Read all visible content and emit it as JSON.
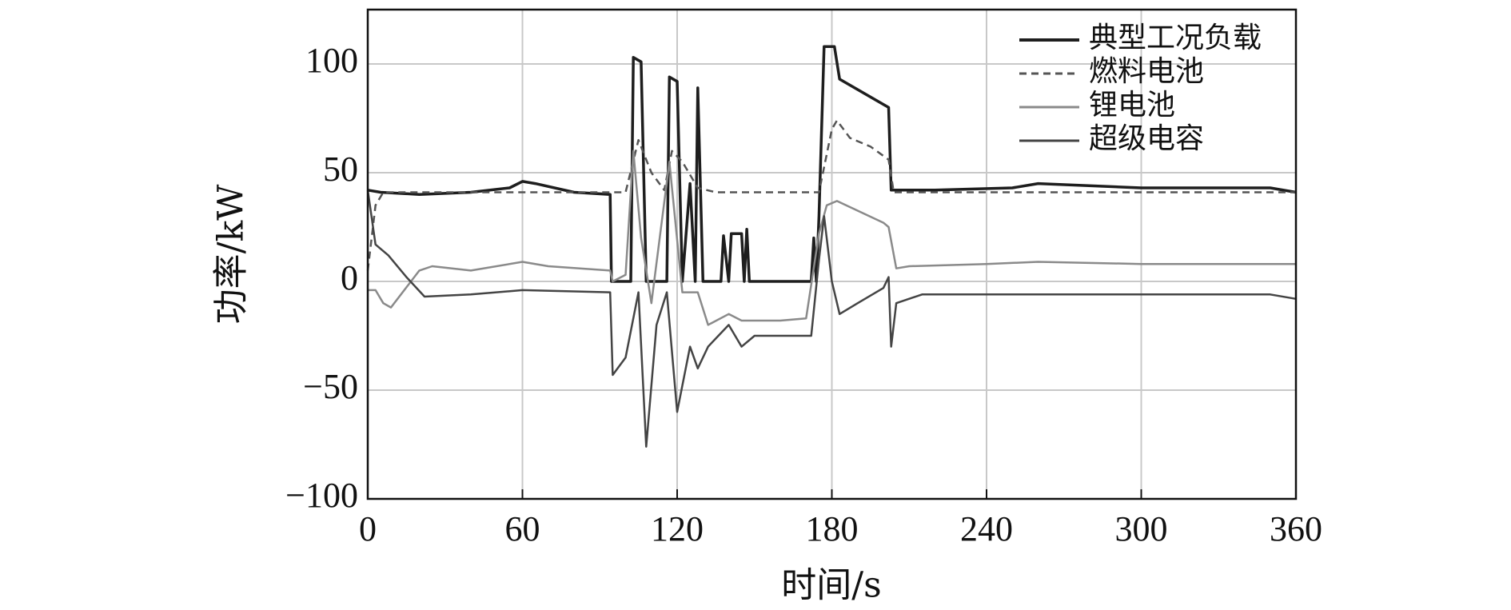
{
  "chart_data": {
    "type": "line",
    "xlabel": "时间/s",
    "ylabel": "功率/kW",
    "xlim": [
      0,
      360
    ],
    "ylim": [
      -100,
      125
    ],
    "xticks": [
      0,
      60,
      120,
      180,
      240,
      300,
      360
    ],
    "yticks": [
      {
        "value": -100,
        "label": "−100"
      },
      {
        "value": -50,
        "label": "−50"
      },
      0,
      50,
      100
    ],
    "grid": true,
    "legend": "upper right",
    "series": [
      {
        "name": "典型工况负载",
        "color": "#1e1e1e",
        "dashed": false,
        "x": [
          0,
          5,
          20,
          40,
          55,
          60,
          65,
          80,
          94,
          94.5,
          102,
          103,
          106,
          108,
          116,
          117,
          120,
          122,
          125,
          127,
          128,
          130,
          137,
          138,
          140,
          141,
          145,
          146,
          147,
          148,
          172,
          173,
          174,
          175,
          177,
          181,
          183,
          202,
          203,
          220,
          250,
          260,
          300,
          350,
          360
        ],
        "values": [
          42,
          41,
          40,
          41,
          43,
          46,
          45,
          41,
          40,
          0,
          0,
          103,
          101,
          0,
          0,
          94,
          92,
          0,
          45,
          0,
          89,
          0,
          0,
          21,
          0,
          22,
          22,
          0,
          24,
          0,
          0,
          20,
          0,
          30,
          108,
          108,
          93,
          80,
          42,
          42,
          43,
          45,
          43,
          43,
          41
        ]
      },
      {
        "name": "燃料电池",
        "color": "#555555",
        "dashed": true,
        "x": [
          0,
          3,
          6,
          100,
          105,
          110,
          115,
          118,
          122,
          128,
          135,
          175,
          180,
          182,
          187,
          195,
          202,
          204,
          360
        ],
        "values": [
          5,
          35,
          41,
          41,
          65,
          50,
          42,
          60,
          55,
          43,
          41,
          41,
          70,
          74,
          66,
          62,
          56,
          41,
          41
        ]
      },
      {
        "name": "锂电池",
        "color": "#8a8a8a",
        "dashed": false,
        "x": [
          0,
          3,
          6,
          9,
          20,
          25,
          40,
          60,
          70,
          94,
          95,
          100,
          103,
          106,
          110,
          117,
          122,
          128,
          132,
          140,
          145,
          160,
          170,
          175,
          178,
          182,
          200,
          202,
          205,
          210,
          240,
          260,
          300,
          360
        ],
        "values": [
          -4,
          -4,
          -10,
          -12,
          5,
          7,
          5,
          9,
          7,
          5,
          0,
          3,
          60,
          20,
          -10,
          55,
          -5,
          -5,
          -20,
          -15,
          -18,
          -18,
          -17,
          22,
          35,
          37,
          27,
          25,
          6,
          7,
          8,
          9,
          8,
          8
        ]
      },
      {
        "name": "超级电容",
        "color": "#444444",
        "dashed": false,
        "x": [
          0,
          3,
          8,
          15,
          22,
          40,
          60,
          94,
          95,
          100,
          105,
          108,
          112,
          116,
          120,
          125,
          128,
          132,
          140,
          145,
          150,
          160,
          172,
          175,
          177,
          180,
          183,
          190,
          200,
          202,
          203,
          205,
          215,
          240,
          300,
          350,
          360
        ],
        "values": [
          42,
          17,
          12,
          2,
          -7,
          -6,
          -4,
          -5,
          -43,
          -35,
          -5,
          -76,
          -20,
          -5,
          -60,
          -30,
          -40,
          -30,
          -20,
          -30,
          -25,
          -25,
          -25,
          10,
          30,
          0,
          -15,
          -10,
          -3,
          2,
          -30,
          -10,
          -6,
          -6,
          -6,
          -6,
          -8
        ]
      }
    ]
  }
}
